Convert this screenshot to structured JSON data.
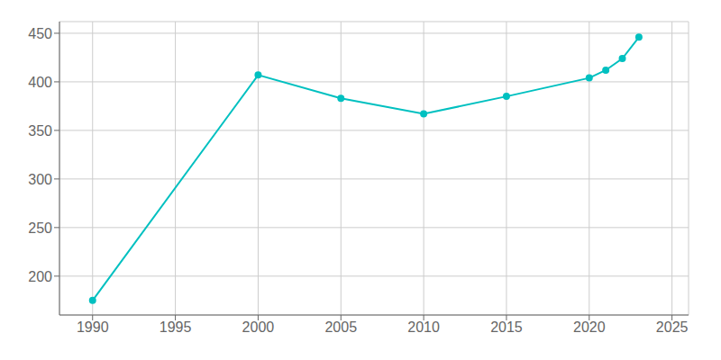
{
  "chart_data": {
    "type": "line",
    "x": [
      1990,
      2000,
      2005,
      2010,
      2015,
      2020,
      2021,
      2022,
      2023
    ],
    "values": [
      175,
      407,
      383,
      367,
      385,
      404,
      412,
      424,
      446
    ],
    "color": "#00C0C0",
    "marker": "circle",
    "xlim": [
      1988,
      2026
    ],
    "ylim": [
      160,
      462
    ],
    "xticks": [
      1990,
      1995,
      2000,
      2005,
      2010,
      2015,
      2020,
      2025
    ],
    "yticks": [
      200,
      250,
      300,
      350,
      400,
      450
    ],
    "grid": true
  }
}
